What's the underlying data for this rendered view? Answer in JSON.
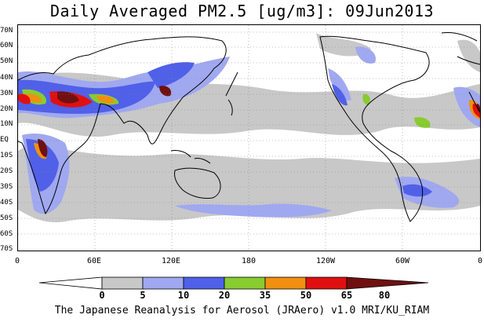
{
  "title": "Daily Averaged PM2.5 [ug/m3]: 09Jun2013",
  "credit": "The Japanese Reanalysis for Aerosol (JRAero) v1.0 MRI/KU_RIAM",
  "lat_labels": [
    "70N",
    "60N",
    "50N",
    "40N",
    "30N",
    "20N",
    "10N",
    "EQ",
    "10S",
    "20S",
    "30S",
    "40S",
    "50S",
    "60S",
    "70S"
  ],
  "lon_labels": [
    "0",
    "60E",
    "120E",
    "180",
    "120W",
    "60W",
    "0"
  ],
  "colorbar": {
    "levels": [
      "0",
      "5",
      "10",
      "20",
      "35",
      "50",
      "65",
      "80"
    ],
    "colors": [
      "#ffffff",
      "#c8c8c8",
      "#a0a8f0",
      "#5060e8",
      "#88cc30",
      "#f09010",
      "#e01010",
      "#701010"
    ]
  }
}
